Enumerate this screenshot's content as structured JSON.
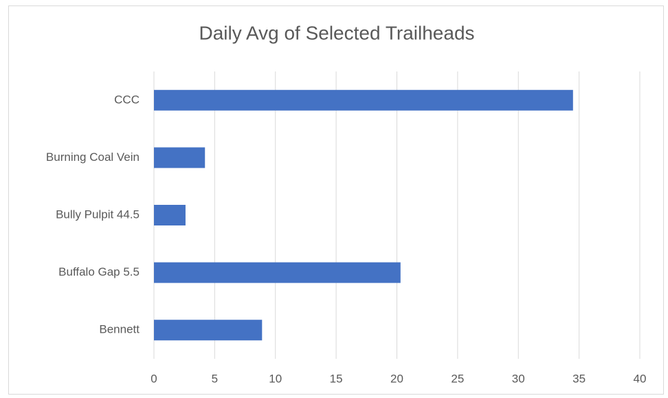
{
  "chart_data": {
    "type": "bar",
    "orientation": "horizontal",
    "title": "Daily Avg of Selected Trailheads",
    "categories": [
      "CCC",
      "Burning Coal Vein",
      "Bully Pulpit 44.5",
      "Buffalo Gap 5.5",
      "Bennett"
    ],
    "values": [
      34.5,
      4.2,
      2.6,
      20.3,
      8.9
    ],
    "color": "#4472c4",
    "xlim": [
      0,
      40
    ],
    "xticks": [
      0,
      5,
      10,
      15,
      20,
      25,
      30,
      35,
      40
    ],
    "grid": true
  }
}
